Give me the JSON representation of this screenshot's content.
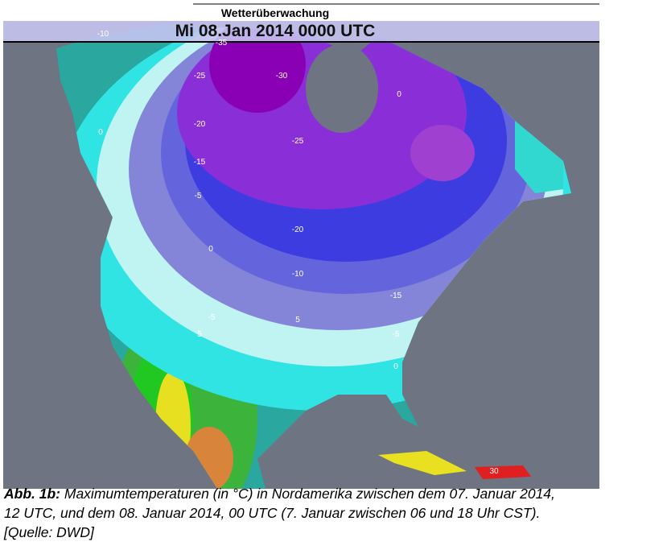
{
  "header": {
    "title": "Wetterüberwachung",
    "banner": "Mi 08.Jan 2014 0000 UTC"
  },
  "map": {
    "contour_labels": [
      "-10",
      "-35",
      "-25",
      "-30",
      "-20",
      "-25",
      "-15",
      "-5",
      "-20",
      "0",
      "-10",
      "-15",
      "-5",
      "5",
      "5",
      "-5",
      "0",
      "0",
      "0",
      "30"
    ]
  },
  "caption": {
    "label": "Abb. 1b:",
    "lines": [
      "Maximumtemperaturen (in °C) in Nordamerika zwischen dem 07. Januar 2014,",
      "12 UTC, und dem 08. Januar 2014, 00 UTC (7. Januar zwischen 06 und 18 Uhr CST).",
      "[Quelle: DWD]"
    ]
  }
}
